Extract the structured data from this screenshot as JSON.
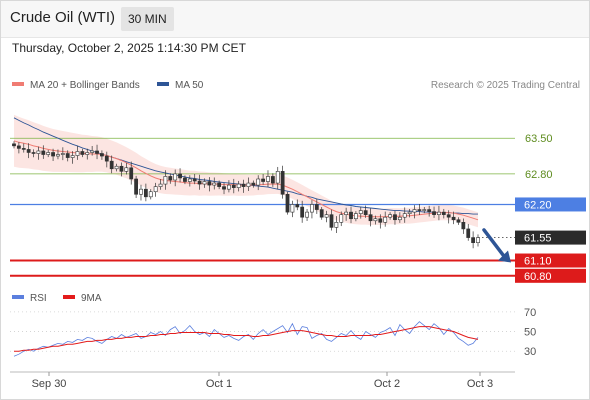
{
  "header": {
    "title": "Crude Oil (WTI)",
    "interval": "30 MIN"
  },
  "timestamp": "Thursday, October 2, 2025 1:14:30 PM CET",
  "legend": {
    "ma20": {
      "label": "MA 20 + Bollinger Bands",
      "color": "#f07c73"
    },
    "ma50": {
      "label": "MA 50",
      "color": "#2e5596"
    }
  },
  "credit": "Research © 2025 Trading Central",
  "rsi_legend": {
    "rsi": {
      "label": "RSI",
      "color": "#5b7fde"
    },
    "ma9": {
      "label": "9MA",
      "color": "#e31b1b"
    }
  },
  "chart_data": [
    {
      "type": "candlestick",
      "title": "Crude Oil (WTI)",
      "x_ticks": [
        "Sep 30",
        "Oct 1",
        "Oct 2",
        "Oct 3"
      ],
      "ylim": [
        60.6,
        64.25
      ],
      "levels": [
        {
          "value": 63.5,
          "label": "63.50",
          "color": "#7cb342",
          "kind": "resistance"
        },
        {
          "value": 62.8,
          "label": "62.80",
          "color": "#7cb342",
          "kind": "resistance"
        },
        {
          "value": 62.2,
          "label": "62.20",
          "color": "#4d7fe3",
          "kind": "pivot"
        },
        {
          "value": 61.1,
          "label": "61.10",
          "color": "#dd1b1b",
          "kind": "support"
        },
        {
          "value": 60.8,
          "label": "60.80",
          "color": "#dd1b1b",
          "kind": "support"
        }
      ],
      "last_price": {
        "value": 61.55,
        "label": "61.55"
      },
      "arrow": {
        "direction": "down",
        "from": 61.7,
        "to": 61.1
      },
      "candles_close": [
        63.35,
        63.3,
        63.28,
        63.22,
        63.2,
        63.25,
        63.18,
        63.22,
        63.15,
        63.18,
        63.2,
        63.12,
        63.16,
        63.24,
        63.18,
        63.22,
        63.25,
        63.2,
        63.15,
        63.05,
        62.9,
        62.95,
        62.85,
        62.92,
        62.7,
        62.4,
        62.5,
        62.35,
        62.45,
        62.55,
        62.6,
        62.75,
        62.68,
        62.8,
        62.72,
        62.65,
        62.7,
        62.66,
        62.6,
        62.65,
        62.58,
        62.62,
        62.55,
        62.5,
        62.58,
        62.53,
        62.6,
        62.55,
        62.62,
        62.58,
        62.7,
        62.65,
        62.75,
        62.62,
        62.85,
        62.4,
        62.05,
        62.2,
        62.15,
        61.95,
        62.05,
        62.2,
        62.1,
        61.95,
        62.0,
        61.75,
        61.85,
        62.0,
        62.05,
        61.92,
        62.02,
        62.08,
        62.0,
        61.88,
        61.92,
        61.85,
        61.95,
        62.0,
        61.9,
        61.95,
        62.02,
        62.05,
        62.1,
        62.08,
        62.1,
        62.06,
        62.0,
        62.05,
        62.0,
        61.95,
        61.9,
        61.85,
        61.72,
        61.55,
        61.45,
        61.55
      ],
      "ma20": [
        63.45,
        63.42,
        63.4,
        63.38,
        63.35,
        63.33,
        63.3,
        63.28,
        63.26,
        63.25,
        63.24,
        63.23,
        63.22,
        63.21,
        63.2,
        63.2,
        63.19,
        63.19,
        63.18,
        63.16,
        63.13,
        63.1,
        63.06,
        63.02,
        62.97,
        62.92,
        62.86,
        62.81,
        62.76,
        62.72,
        62.69,
        62.67,
        62.66,
        62.65,
        62.64,
        62.63,
        62.62,
        62.62,
        62.61,
        62.61,
        62.6,
        62.6,
        62.6,
        62.59,
        62.59,
        62.59,
        62.58,
        62.58,
        62.58,
        62.58,
        62.59,
        62.59,
        62.6,
        62.6,
        62.6,
        62.58,
        62.54,
        62.5,
        62.45,
        62.4,
        62.35,
        62.3,
        62.25,
        62.2,
        62.15,
        62.1,
        62.06,
        62.03,
        62.01,
        61.99,
        61.98,
        61.97,
        61.97,
        61.96,
        61.96,
        61.96,
        61.96,
        61.97,
        61.97,
        61.97,
        61.98,
        61.98,
        61.99,
        62.0,
        62.01,
        62.02,
        62.03,
        62.04,
        62.04,
        62.04,
        62.03,
        62.01,
        61.99,
        61.96,
        61.93,
        61.9
      ],
      "ma50": [
        63.9,
        63.85,
        63.8,
        63.76,
        63.71,
        63.67,
        63.62,
        63.58,
        63.54,
        63.5,
        63.46,
        63.42,
        63.38,
        63.35,
        63.31,
        63.28,
        63.25,
        63.22,
        63.19,
        63.16,
        63.13,
        63.1,
        63.07,
        63.04,
        63.01,
        62.98,
        62.95,
        62.92,
        62.89,
        62.86,
        62.84,
        62.82,
        62.8,
        62.78,
        62.76,
        62.74,
        62.72,
        62.71,
        62.69,
        62.68,
        62.67,
        62.65,
        62.64,
        62.63,
        62.62,
        62.61,
        62.6,
        62.59,
        62.58,
        62.57,
        62.56,
        62.55,
        62.54,
        62.52,
        62.5,
        62.48,
        62.46,
        62.44,
        62.41,
        62.39,
        62.36,
        62.34,
        62.31,
        62.29,
        62.27,
        62.25,
        62.23,
        62.21,
        62.19,
        62.18,
        62.16,
        62.15,
        62.14,
        62.13,
        62.12,
        62.11,
        62.1,
        62.09,
        62.08,
        62.08,
        62.07,
        62.07,
        62.06,
        62.06,
        62.05,
        62.05,
        62.05,
        62.04,
        62.04,
        62.04,
        62.03,
        62.03,
        62.02,
        62.02,
        62.01,
        62.01
      ]
    },
    {
      "type": "line",
      "title": "RSI",
      "ylim": [
        15,
        80
      ],
      "y_ticks": [
        70,
        50,
        30
      ],
      "series": [
        {
          "name": "RSI",
          "color": "#5b7fde",
          "values": [
            25,
            27,
            30,
            32,
            30,
            33,
            35,
            34,
            36,
            38,
            37,
            40,
            39,
            42,
            41,
            44,
            43,
            40,
            38,
            42,
            45,
            43,
            47,
            44,
            46,
            48,
            43,
            45,
            49,
            47,
            50,
            46,
            52,
            55,
            48,
            51,
            56,
            50,
            47,
            49,
            45,
            52,
            48,
            44,
            46,
            43,
            41,
            45,
            47,
            42,
            48,
            52,
            47,
            50,
            53,
            56,
            49,
            58,
            47,
            55,
            54,
            43,
            46,
            48,
            42,
            40,
            44,
            48,
            46,
            51,
            45,
            42,
            50,
            47,
            44,
            49,
            51,
            54,
            46,
            57,
            52,
            48,
            55,
            60,
            56,
            52,
            58,
            54,
            47,
            53,
            49,
            43,
            40,
            36,
            38,
            44
          ]
        },
        {
          "name": "9MA",
          "color": "#e31b1b",
          "values": [
            30,
            30,
            31,
            31,
            32,
            32,
            33,
            34,
            35,
            35,
            36,
            37,
            37,
            38,
            39,
            40,
            40,
            41,
            41,
            42,
            42,
            43,
            43,
            44,
            44,
            45,
            45,
            45,
            46,
            46,
            47,
            47,
            48,
            48,
            49,
            49,
            49,
            49,
            49,
            49,
            48,
            48,
            48,
            47,
            47,
            46,
            46,
            46,
            46,
            45,
            45,
            46,
            46,
            47,
            48,
            49,
            50,
            51,
            51,
            51,
            50,
            49,
            48,
            47,
            46,
            46,
            45,
            45,
            45,
            46,
            46,
            46,
            46,
            46,
            47,
            47,
            48,
            49,
            50,
            51,
            52,
            53,
            54,
            55,
            55,
            55,
            54,
            53,
            52,
            51,
            50,
            48,
            46,
            44,
            43,
            42
          ]
        }
      ]
    }
  ]
}
